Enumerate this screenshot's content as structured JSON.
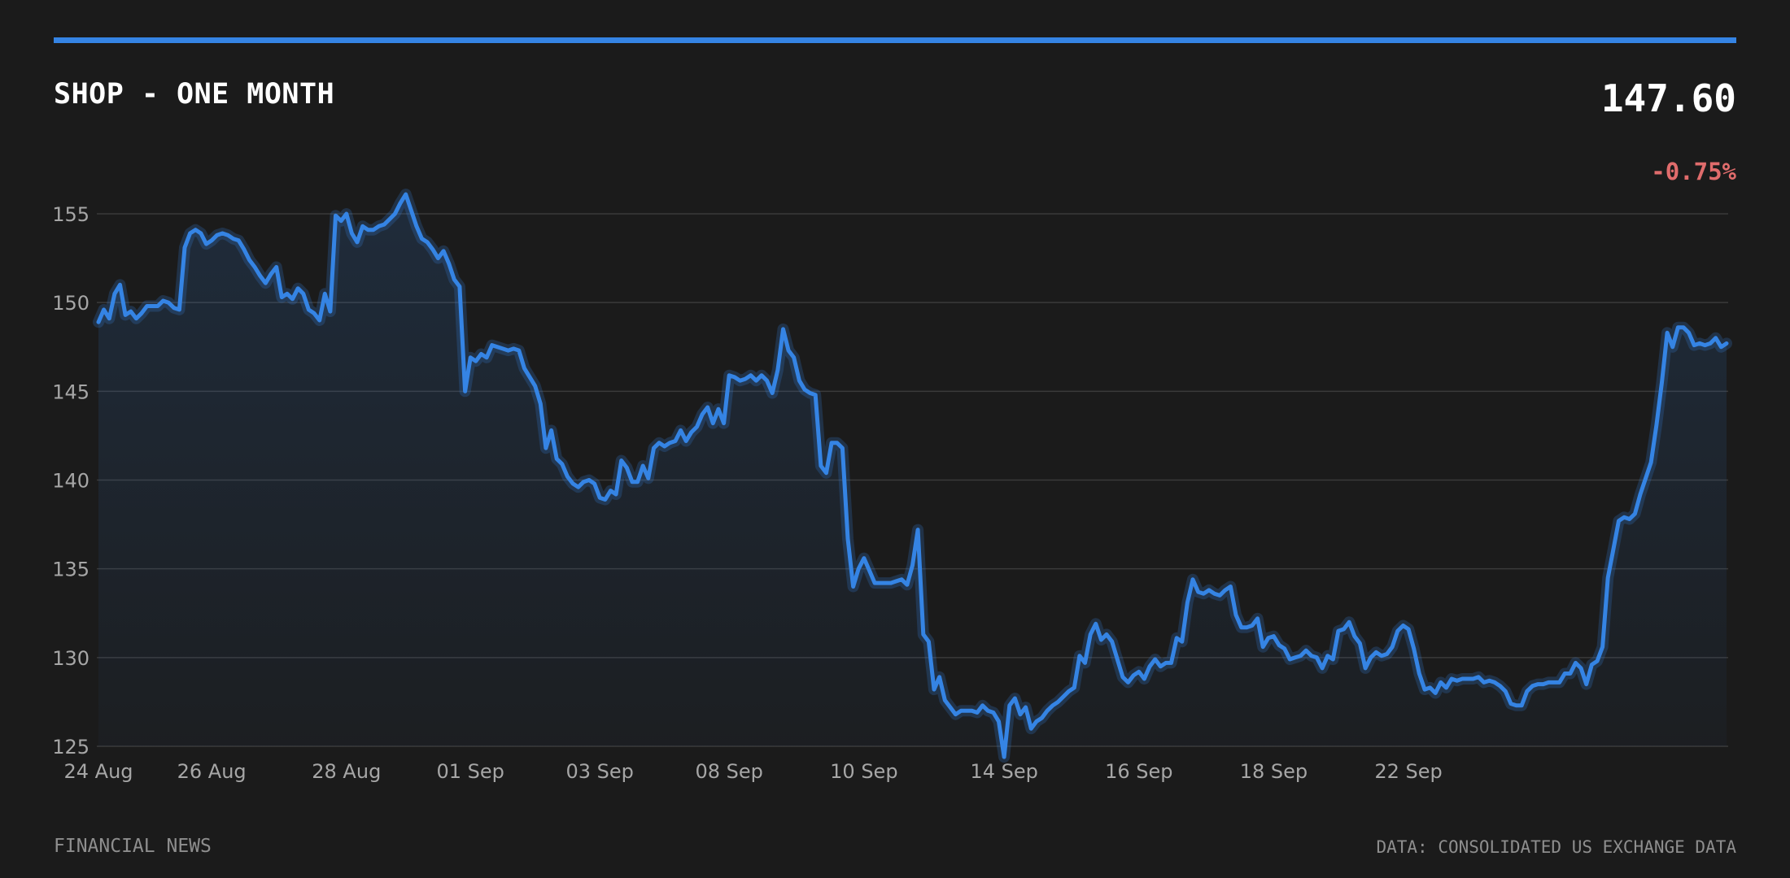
{
  "header": {
    "title": "SHOP - ONE MONTH",
    "price": "147.60",
    "change": "-0.75%"
  },
  "footer": {
    "source_left": "FINANCIAL NEWS",
    "source_right": "DATA: CONSOLIDATED US EXCHANGE DATA"
  },
  "colors": {
    "background": "#1b1b1b",
    "accent": "#3584e4",
    "negative": "#e06c6c",
    "grid": "#3a3a3a",
    "tick_text": "#a6a6a6"
  },
  "chart_data": {
    "type": "area",
    "title": "SHOP - ONE MONTH",
    "xlabel": "",
    "ylabel": "",
    "ylim": [
      125,
      156.5
    ],
    "y_ticks": [
      125,
      130,
      135,
      140,
      145,
      150,
      155
    ],
    "grid": true,
    "legend": "none",
    "x_ticks": [
      {
        "label": "24 Aug",
        "index": 0
      },
      {
        "label": "26 Aug",
        "index": 21
      },
      {
        "label": "28 Aug",
        "index": 46
      },
      {
        "label": "01 Sep",
        "index": 69
      },
      {
        "label": "03 Sep",
        "index": 93
      },
      {
        "label": "08 Sep",
        "index": 117
      },
      {
        "label": "10 Sep",
        "index": 142
      },
      {
        "label": "14 Sep",
        "index": 168
      },
      {
        "label": "16 Sep",
        "index": 193
      },
      {
        "label": "18 Sep",
        "index": 218
      },
      {
        "label": "22 Sep",
        "index": 243
      }
    ],
    "series": [
      {
        "values": [
          148.9,
          149.6,
          149.1,
          150.5,
          151.0,
          149.3,
          149.5,
          149.1,
          149.4,
          149.8,
          149.8,
          149.8,
          150.1,
          150.0,
          149.7,
          149.6,
          153.1,
          153.9,
          154.1,
          153.9,
          153.3,
          153.5,
          153.8,
          153.9,
          153.8,
          153.6,
          153.5,
          153.0,
          152.4,
          152.0,
          151.5,
          151.1,
          151.6,
          152.0,
          150.3,
          150.5,
          150.2,
          150.8,
          150.5,
          149.6,
          149.4,
          149.0,
          150.5,
          149.5,
          154.9,
          154.6,
          155.0,
          153.9,
          153.4,
          154.3,
          154.1,
          154.1,
          154.3,
          154.4,
          154.7,
          155.0,
          155.6,
          156.1,
          155.2,
          154.3,
          153.6,
          153.4,
          153.0,
          152.5,
          152.9,
          152.2,
          151.3,
          150.9,
          145.0,
          146.9,
          146.7,
          147.1,
          146.9,
          147.6,
          147.5,
          147.4,
          147.3,
          147.4,
          147.3,
          146.3,
          145.8,
          145.3,
          144.3,
          141.8,
          142.8,
          141.2,
          140.9,
          140.2,
          139.8,
          139.6,
          139.9,
          140.0,
          139.8,
          139.0,
          138.9,
          139.4,
          139.2,
          141.1,
          140.7,
          139.9,
          139.9,
          140.8,
          140.1,
          141.8,
          142.1,
          141.9,
          142.1,
          142.2,
          142.8,
          142.2,
          142.7,
          143.0,
          143.7,
          144.1,
          143.2,
          144.0,
          143.2,
          145.9,
          145.8,
          145.6,
          145.7,
          145.9,
          145.6,
          145.9,
          145.6,
          144.9,
          146.2,
          148.5,
          147.3,
          146.9,
          145.6,
          145.1,
          144.9,
          144.8,
          140.8,
          140.4,
          142.1,
          142.1,
          141.8,
          136.7,
          134.0,
          135.0,
          135.6,
          134.9,
          134.2,
          134.2,
          134.2,
          134.2,
          134.3,
          134.4,
          134.1,
          135.2,
          137.2,
          131.3,
          130.9,
          128.2,
          128.9,
          127.6,
          127.2,
          126.8,
          127.0,
          127.0,
          127.0,
          126.9,
          127.3,
          127.0,
          126.9,
          126.4,
          124.4,
          127.3,
          127.7,
          126.8,
          127.2,
          126.0,
          126.4,
          126.6,
          127.0,
          127.3,
          127.5,
          127.8,
          128.1,
          128.3,
          130.1,
          129.7,
          131.3,
          131.9,
          131.0,
          131.3,
          130.9,
          129.9,
          128.9,
          128.6,
          129.0,
          129.2,
          128.8,
          129.5,
          129.9,
          129.5,
          129.7,
          129.7,
          131.1,
          130.9,
          133.1,
          134.4,
          133.7,
          133.6,
          133.8,
          133.6,
          133.5,
          133.8,
          134.0,
          132.4,
          131.7,
          131.7,
          131.8,
          132.2,
          130.6,
          131.1,
          131.2,
          130.7,
          130.5,
          129.9,
          130.0,
          130.1,
          130.4,
          130.1,
          130.0,
          129.4,
          130.1,
          129.9,
          131.5,
          131.6,
          132.0,
          131.2,
          130.8,
          129.4,
          130.0,
          130.3,
          130.1,
          130.2,
          130.6,
          131.5,
          131.8,
          131.6,
          130.5,
          129.1,
          128.2,
          128.3,
          128.0,
          128.6,
          128.3,
          128.8,
          128.7,
          128.8,
          128.8,
          128.8,
          128.9,
          128.6,
          128.7,
          128.6,
          128.4,
          128.1,
          127.4,
          127.3,
          127.3,
          128.1,
          128.4,
          128.5,
          128.5,
          128.6,
          128.6,
          128.6,
          129.1,
          129.1,
          129.7,
          129.4,
          128.5,
          129.6,
          129.8,
          130.6,
          134.5,
          136.1,
          137.7,
          137.9,
          137.8,
          138.1,
          139.2,
          140.1,
          141.0,
          143.1,
          145.5,
          148.3,
          147.5,
          148.6,
          148.6,
          148.3,
          147.6,
          147.7,
          147.6,
          147.7,
          148.0,
          147.5,
          147.7
        ]
      }
    ]
  }
}
